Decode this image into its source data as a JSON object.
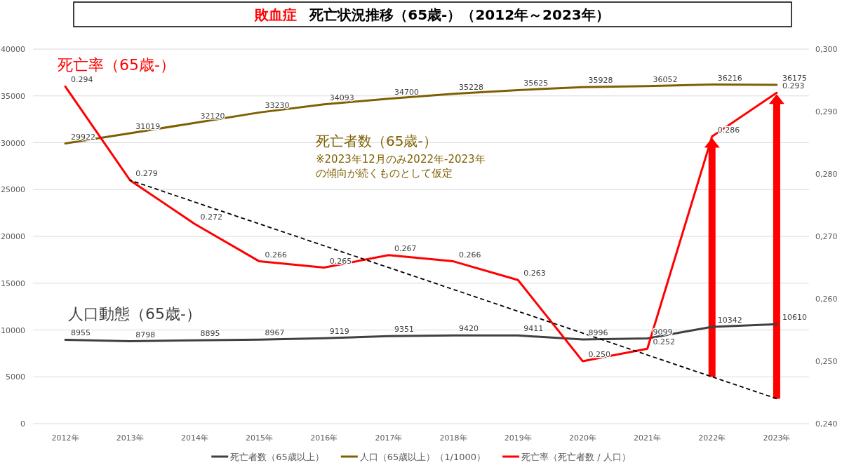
{
  "chart_data": {
    "type": "line",
    "title": "敗血症",
    "subtitle": "死亡状況推移（65歳-）（2012年～2023年）",
    "categories": [
      "2012年",
      "2013年",
      "2014年",
      "2015年",
      "2016年",
      "2017年",
      "2018年",
      "2019年",
      "2020年",
      "2021年",
      "2022年",
      "2023年"
    ],
    "series": [
      {
        "name": "死亡者数（65歳以上）",
        "color": "#404040",
        "values": [
          8955,
          8798,
          8895,
          8967,
          9119,
          9351,
          9420,
          9411,
          8996,
          9099,
          10342,
          10610
        ],
        "value_labels": [
          "8955",
          "8798",
          "8895",
          "8967",
          "9119",
          "9351",
          "9420",
          "9411",
          "8996",
          "9099",
          "10342",
          "10610"
        ]
      },
      {
        "name": "人口（65歳以上）（1/1000）",
        "color": "#7f6000",
        "values": [
          29922,
          31019,
          32120,
          33230,
          34093,
          34700,
          35228,
          35625,
          35928,
          36052,
          36216,
          36175
        ],
        "value_labels": [
          "29922",
          "31019",
          "32120",
          "33230",
          "34093",
          "34700",
          "35228",
          "35625",
          "35928",
          "36052",
          "36216",
          "36175"
        ]
      },
      {
        "name": "死亡率（死亡者数 / 人口）",
        "color": "#ff0000",
        "axis": "y2",
        "values": [
          0.294,
          0.279,
          0.272,
          0.266,
          0.265,
          0.267,
          0.266,
          0.263,
          0.25,
          0.252,
          0.286,
          0.293
        ],
        "value_labels": [
          "0.294",
          "0.279",
          "0.272",
          "0.266",
          "0.265",
          "0.267",
          "0.266",
          "0.263",
          "0.250",
          "0.252",
          "0.286",
          "0.293"
        ]
      },
      {
        "type": "line",
        "color": "#000000",
        "axis": "y2",
        "line_style": "dashed",
        "values": [
          null,
          0.279,
          0.2755,
          0.272,
          0.2685,
          0.265,
          0.2615,
          0.258,
          0.2545,
          0.251,
          0.2475,
          0.244
        ]
      }
    ],
    "ylim": [
      0,
      40000
    ],
    "yticks": [
      0,
      5000,
      10000,
      15000,
      20000,
      25000,
      30000,
      35000,
      40000
    ],
    "y2lim": [
      0.24,
      0.3
    ],
    "y2ticks": [
      {
        "value": 0.24,
        "label": "0,240"
      },
      {
        "value": 0.25,
        "label": "0,250"
      },
      {
        "value": 0.26,
        "label": "0,260"
      },
      {
        "value": 0.27,
        "label": "0,270"
      },
      {
        "value": 0.28,
        "label": "0,280"
      },
      {
        "value": 0.29,
        "label": "0,290"
      },
      {
        "value": 0.3,
        "label": "0,300"
      }
    ],
    "grid": "y",
    "legend": "bottom",
    "annotations": [
      "死亡率（65歳-）",
      "死亡者数（65歳-）",
      "※2023年12月のみ2022年-2023年の傾向が続くものとして仮定",
      "人口動態（65歳-）"
    ]
  }
}
